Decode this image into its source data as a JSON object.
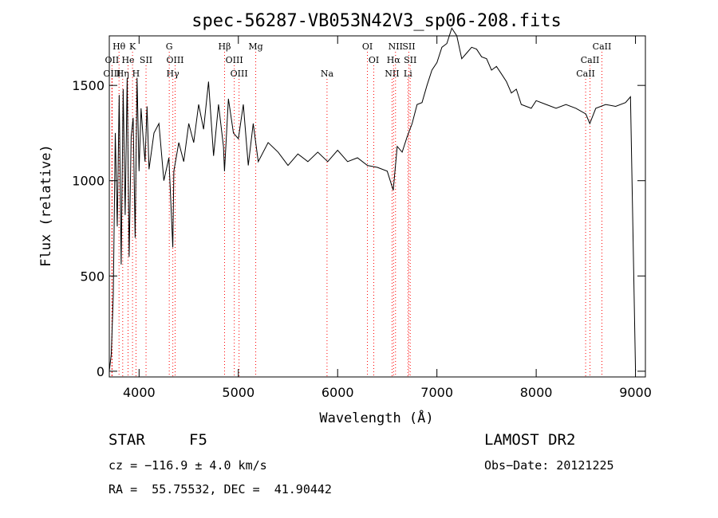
{
  "chart_data": {
    "type": "line",
    "title": "spec-56287-VB053N42V3_sp06-208.fits",
    "xlabel": "Wavelength (Å)",
    "ylabel": "Flux (relative)",
    "xlim": [
      3700,
      9100
    ],
    "ylim": [
      -30,
      1760
    ],
    "x_ticks": [
      4000,
      5000,
      6000,
      7000,
      8000,
      9000
    ],
    "x_tick_labels": [
      "4000",
      "5000",
      "6000",
      "7000",
      "8000",
      "9000"
    ],
    "y_ticks": [
      0,
      500,
      1000,
      1500
    ],
    "y_tick_labels": [
      "0",
      "500",
      "1000",
      "1500"
    ],
    "grid": false,
    "series": [
      {
        "name": "",
        "color": "#000000",
        "x": [
          3700,
          3720,
          3740,
          3760,
          3780,
          3800,
          3820,
          3840,
          3860,
          3880,
          3900,
          3920,
          3940,
          3960,
          3980,
          4000,
          4020,
          4040,
          4060,
          4080,
          4100,
          4150,
          4200,
          4250,
          4300,
          4340,
          4350,
          4400,
          4450,
          4500,
          4550,
          4600,
          4650,
          4700,
          4750,
          4800,
          4850,
          4860,
          4900,
          4950,
          5000,
          5050,
          5100,
          5150,
          5200,
          5300,
          5400,
          5500,
          5600,
          5700,
          5800,
          5900,
          6000,
          6100,
          6200,
          6300,
          6400,
          6500,
          6560,
          6600,
          6650,
          6700,
          6750,
          6800,
          6850,
          6900,
          6950,
          7000,
          7050,
          7100,
          7150,
          7200,
          7250,
          7300,
          7350,
          7400,
          7450,
          7500,
          7550,
          7600,
          7650,
          7700,
          7750,
          7800,
          7850,
          7900,
          7950,
          8000,
          8100,
          8200,
          8300,
          8400,
          8500,
          8540,
          8600,
          8700,
          8800,
          8900,
          8950,
          9000
        ],
        "y": [
          0,
          90,
          400,
          1250,
          760,
          1450,
          560,
          1480,
          820,
          1540,
          600,
          1230,
          1330,
          700,
          1540,
          1050,
          1380,
          1230,
          1100,
          1390,
          1060,
          1250,
          1300,
          1000,
          1120,
          650,
          1050,
          1200,
          1100,
          1300,
          1200,
          1400,
          1270,
          1520,
          1130,
          1400,
          1180,
          1050,
          1430,
          1250,
          1220,
          1400,
          1080,
          1300,
          1100,
          1200,
          1150,
          1080,
          1140,
          1100,
          1150,
          1100,
          1160,
          1100,
          1120,
          1080,
          1070,
          1050,
          950,
          1180,
          1150,
          1230,
          1300,
          1400,
          1410,
          1500,
          1580,
          1620,
          1700,
          1720,
          1800,
          1760,
          1640,
          1670,
          1700,
          1690,
          1650,
          1640,
          1580,
          1600,
          1560,
          1520,
          1460,
          1480,
          1400,
          1390,
          1380,
          1420,
          1400,
          1380,
          1400,
          1380,
          1350,
          1300,
          1380,
          1400,
          1390,
          1410,
          1440,
          0
        ]
      }
    ],
    "line_markers": [
      {
        "label": "Hθ",
        "x": 3798,
        "row": 1,
        "color": "#ff0000"
      },
      {
        "label": "K",
        "x": 3934,
        "row": 1,
        "color": "#ff0000"
      },
      {
        "label": "G",
        "x": 4304,
        "row": 1,
        "color": "#ff0000"
      },
      {
        "label": "Hβ",
        "x": 4861,
        "row": 1,
        "color": "#ff0000"
      },
      {
        "label": "Mg",
        "x": 5175,
        "row": 1,
        "color": "#ff0000"
      },
      {
        "label": "OI",
        "x": 6300,
        "row": 1,
        "color": "#ff0000"
      },
      {
        "label": "NII",
        "x": 6583,
        "row": 1,
        "color": "#ff0000"
      },
      {
        "label": "SII",
        "x": 6717,
        "row": 1,
        "color": "#ff0000"
      },
      {
        "label": "CaII",
        "x": 8662,
        "row": 1,
        "color": "#ff0000"
      },
      {
        "label": "OII",
        "x": 3727,
        "row": 2,
        "color": "#ff0000"
      },
      {
        "label": "He",
        "x": 3889,
        "row": 2,
        "color": "#ff0000"
      },
      {
        "label": "SII",
        "x": 4070,
        "row": 2,
        "color": "#ff0000"
      },
      {
        "label": "OIII",
        "x": 4363,
        "row": 2,
        "color": "#ff0000"
      },
      {
        "label": "OIII",
        "x": 4959,
        "row": 2,
        "color": "#ff0000"
      },
      {
        "label": "OI",
        "x": 6364,
        "row": 2,
        "color": "#ff0000"
      },
      {
        "label": "Hα",
        "x": 6563,
        "row": 2,
        "color": "#ff0000"
      },
      {
        "label": "SII",
        "x": 6731,
        "row": 2,
        "color": "#ff0000"
      },
      {
        "label": "CaII",
        "x": 8542,
        "row": 2,
        "color": "#ff0000"
      },
      {
        "label": "OIII",
        "x": 3727,
        "row": 3,
        "color": "#ff0000"
      },
      {
        "label": "Hη",
        "x": 3835,
        "row": 3,
        "color": "#ff0000"
      },
      {
        "label": "H",
        "x": 3969,
        "row": 3,
        "color": "#ff0000"
      },
      {
        "label": "Hγ",
        "x": 4340,
        "row": 3,
        "color": "#ff0000"
      },
      {
        "label": "OIII",
        "x": 5007,
        "row": 3,
        "color": "#ff0000"
      },
      {
        "label": "Na",
        "x": 5893,
        "row": 3,
        "color": "#ff0000"
      },
      {
        "label": "NII",
        "x": 6548,
        "row": 3,
        "color": "#ff0000"
      },
      {
        "label": "Li",
        "x": 6708,
        "row": 3,
        "color": "#ff0000"
      },
      {
        "label": "CaII",
        "x": 8498,
        "row": 3,
        "color": "#ff0000"
      }
    ]
  },
  "info": {
    "object_class": "STAR",
    "subclass": "F5",
    "survey": "LAMOST DR2",
    "redshift": "cz = −116.9 ± 4.0 km/s",
    "obs_date": "Obs−Date: 20121225",
    "coords": "RA =  55.75532, DEC =  41.90442"
  }
}
